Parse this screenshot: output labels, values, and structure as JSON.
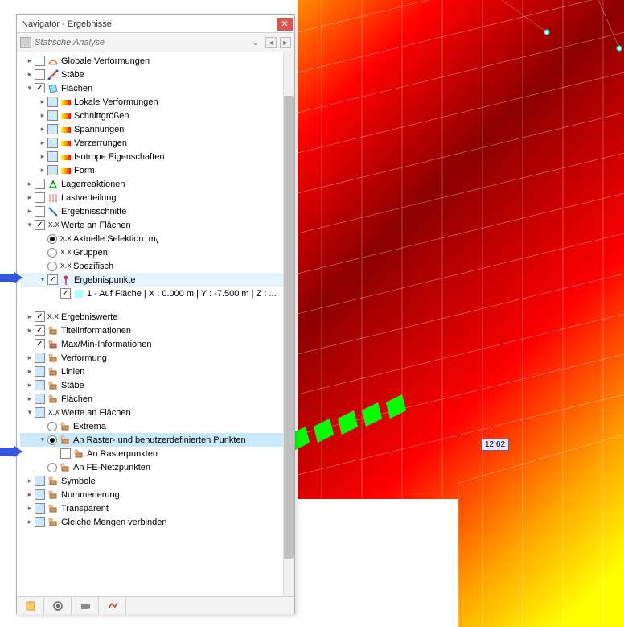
{
  "window": {
    "title": "Navigator - Ergebnisse"
  },
  "toolbar": {
    "label": "Statische Analyse"
  },
  "viewport": {
    "value_label": "12.62"
  },
  "tree": [
    {
      "d": 0,
      "exp": ">",
      "cb": "empty",
      "ic": "deform",
      "t": "Globale Verformungen"
    },
    {
      "d": 0,
      "exp": ">",
      "cb": "empty",
      "ic": "member",
      "t": "Stäbe"
    },
    {
      "d": 0,
      "exp": "v",
      "cb": "checked",
      "ic": "surface",
      "t": "Flächen"
    },
    {
      "d": 1,
      "exp": ">",
      "cb": "blue",
      "ic": "contour",
      "t": "Lokale Verformungen"
    },
    {
      "d": 1,
      "exp": ">",
      "cb": "blue",
      "ic": "contour",
      "t": "Schnittgrößen"
    },
    {
      "d": 1,
      "exp": ">",
      "cb": "blue",
      "ic": "contour",
      "t": "Spannungen"
    },
    {
      "d": 1,
      "exp": ">",
      "cb": "blue",
      "ic": "contour",
      "t": "Verzerrungen"
    },
    {
      "d": 1,
      "exp": ">",
      "cb": "blue",
      "ic": "contour",
      "t": "Isotrope Eigenschaften"
    },
    {
      "d": 1,
      "exp": ">",
      "cb": "blue",
      "ic": "contour",
      "t": "Form"
    },
    {
      "d": 0,
      "exp": ">",
      "cb": "empty",
      "ic": "support",
      "t": "Lagerreaktionen"
    },
    {
      "d": 0,
      "exp": ">",
      "cb": "empty",
      "ic": "load",
      "t": "Lastverteilung"
    },
    {
      "d": 0,
      "exp": ">",
      "cb": "empty",
      "ic": "section",
      "t": "Ergebnisschnitte"
    },
    {
      "d": 0,
      "exp": "v",
      "cb": "checked",
      "ic": "values",
      "t": "Werte an Flächen"
    },
    {
      "d": 1,
      "exp": "",
      "rb": "sel",
      "ic": "values",
      "t": "Aktuelle Selektion: mᵧ"
    },
    {
      "d": 1,
      "exp": "",
      "rb": "",
      "ic": "values",
      "t": "Gruppen"
    },
    {
      "d": 1,
      "exp": "",
      "rb": "",
      "ic": "values",
      "t": "Spezifisch"
    },
    {
      "d": 1,
      "exp": "v",
      "cb": "checked",
      "ic": "point",
      "t": "Ergebnispunkte",
      "hl": "hl2",
      "arrow": true
    },
    {
      "d": 2,
      "exp": "",
      "cb": "checked",
      "ic": "cyan",
      "t": "1 - Auf Fläche | X : 0.000 m | Y : -7.500 m | Z : ..."
    },
    {
      "gap": true
    },
    {
      "d": 0,
      "exp": ">",
      "cb": "checked",
      "ic": "xxx",
      "t": "Ergebniswerte"
    },
    {
      "d": 0,
      "exp": ">",
      "cb": "checked",
      "ic": "title",
      "t": "Titelinformationen"
    },
    {
      "d": 0,
      "exp": "",
      "cb": "checked",
      "ic": "minmax",
      "t": "Max/Min-Informationen"
    },
    {
      "d": 0,
      "exp": ">",
      "cb": "blue",
      "ic": "deform2",
      "t": "Verformung"
    },
    {
      "d": 0,
      "exp": ">",
      "cb": "blue",
      "ic": "lines",
      "t": "Linien"
    },
    {
      "d": 0,
      "exp": ">",
      "cb": "blue",
      "ic": "member2",
      "t": "Stäbe"
    },
    {
      "d": 0,
      "exp": ">",
      "cb": "blue",
      "ic": "surface2",
      "t": "Flächen"
    },
    {
      "d": 0,
      "exp": "v",
      "cb": "blue",
      "ic": "values2",
      "t": "Werte an Flächen"
    },
    {
      "d": 1,
      "exp": "",
      "rb": "",
      "ic": "extrema",
      "t": "Extrema"
    },
    {
      "d": 1,
      "exp": "v",
      "rb": "sel",
      "ic": "grid",
      "t": "An Raster- und benutzerdefinierten Punkten",
      "hl": "hl",
      "arrow": true
    },
    {
      "d": 2,
      "exp": "",
      "cb": "empty",
      "ic": "grid2",
      "t": "An Rasterpunkten"
    },
    {
      "d": 1,
      "exp": "",
      "rb": "",
      "ic": "fe",
      "t": "An FE-Netzpunkten"
    },
    {
      "d": 0,
      "exp": ">",
      "cb": "blue",
      "ic": "symbol",
      "t": "Symbole"
    },
    {
      "d": 0,
      "exp": ">",
      "cb": "blue",
      "ic": "number",
      "t": "Nummerierung"
    },
    {
      "d": 0,
      "exp": ">",
      "cb": "blue",
      "ic": "transp",
      "t": "Transparent"
    },
    {
      "d": 0,
      "exp": ">",
      "cb": "blue",
      "ic": "merge",
      "t": "Gleiche Mengen verbinden"
    }
  ],
  "icons": {
    "deform": "#ff9966",
    "member": "#ff6666",
    "surface": "#66ccff",
    "contour": "#ffcc66",
    "support": "#66cc66",
    "load": "#ff9999",
    "section": "#6699ff",
    "values": "#999",
    "point": "#cc6699",
    "cyan": "#66ffff",
    "xxx": "#999",
    "title": "#cc9966",
    "minmax": "#cc6666",
    "deform2": "#cc9966",
    "lines": "#cc9966",
    "member2": "#cc9966",
    "surface2": "#cc9966",
    "values2": "#cc9966",
    "extrema": "#cc9966",
    "grid": "#cc9966",
    "grid2": "#cc9966",
    "fe": "#cc9966",
    "symbol": "#cc9966",
    "number": "#cc9966",
    "transp": "#cc9966",
    "merge": "#cc9966"
  },
  "scrollbar": {
    "top_pct": 8,
    "height_pct": 85
  }
}
